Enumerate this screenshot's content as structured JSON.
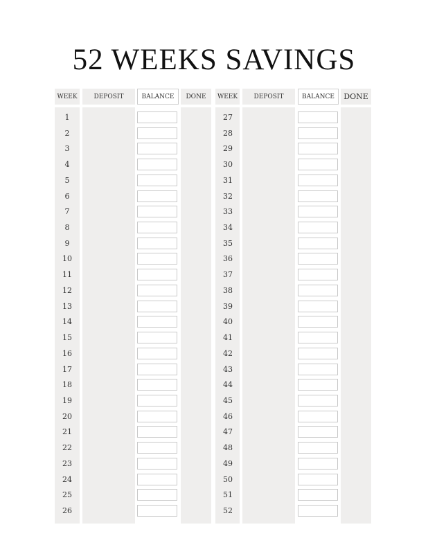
{
  "title": "52 WEEKS SAVINGS",
  "headers": {
    "week": "WEEK",
    "deposit": "DEPOSIT",
    "balance": "BALANCE",
    "done": "DONE"
  },
  "left_weeks": [
    "1",
    "2",
    "3",
    "4",
    "5",
    "6",
    "7",
    "8",
    "9",
    "10",
    "11",
    "12",
    "13",
    "14",
    "15",
    "16",
    "17",
    "18",
    "19",
    "20",
    "21",
    "22",
    "23",
    "24",
    "25",
    "26"
  ],
  "right_weeks": [
    "27",
    "28",
    "29",
    "30",
    "31",
    "32",
    "33",
    "34",
    "35",
    "36",
    "37",
    "38",
    "39",
    "40",
    "41",
    "42",
    "43",
    "44",
    "45",
    "46",
    "47",
    "48",
    "49",
    "50",
    "51",
    "52"
  ],
  "colors": {
    "panel": "#efeeed",
    "box_border": "#c9c9c9"
  }
}
